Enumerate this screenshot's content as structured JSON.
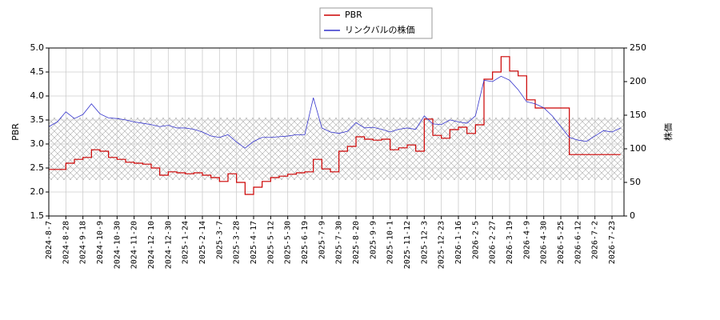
{
  "chart_data": {
    "type": "line",
    "categories": [
      "2024-8-7",
      null,
      "2024-8-28",
      null,
      "2024-9-18",
      null,
      "2024-10-9",
      null,
      "2024-10-30",
      null,
      "2024-11-20",
      null,
      "2024-12-10",
      null,
      "2024-12-30",
      null,
      "2025-1-24",
      null,
      "2025-2-14",
      null,
      "2025-3-7",
      null,
      "2025-3-28",
      null,
      "2025-4-17",
      null,
      "2025-5-12",
      null,
      "2025-5-30",
      null,
      "2025-6-19",
      null,
      "2025-7-9",
      null,
      "2025-7-30",
      null,
      "2025-8-20",
      null,
      "2025-9-9",
      null,
      "2025-10-1",
      null,
      "2025-11-12",
      null,
      "2025-12-3",
      null,
      "2025-12-23",
      null,
      "2026-1-16",
      null,
      "2026-2-5",
      null,
      "2026-2-27",
      null,
      "2026-3-19",
      null,
      "2026-4-9",
      null,
      "2026-4-30",
      null,
      "2026-5-25",
      null,
      "2026-6-12",
      null,
      "2026-7-2",
      null,
      "2026-7-23",
      null
    ],
    "series": [
      {
        "name": "PBR",
        "color": "#cc0000",
        "step": true,
        "values": [
          2.47,
          2.47,
          2.6,
          2.68,
          2.72,
          2.88,
          2.85,
          2.72,
          2.68,
          2.62,
          2.6,
          2.58,
          2.5,
          2.35,
          2.42,
          2.4,
          2.38,
          2.4,
          2.35,
          2.3,
          2.22,
          2.38,
          2.2,
          1.95,
          2.1,
          2.22,
          2.3,
          2.33,
          2.37,
          2.4,
          2.42,
          2.68,
          2.48,
          2.42,
          2.85,
          2.95,
          3.15,
          3.1,
          3.08,
          3.1,
          2.88,
          2.92,
          2.98,
          2.85,
          3.52,
          3.18,
          3.12,
          3.3,
          3.35,
          3.22,
          3.4,
          4.35,
          4.5,
          4.82,
          4.52,
          4.42,
          3.92,
          3.75,
          3.75,
          3.75,
          3.75,
          2.78,
          2.78,
          2.78,
          2.78,
          2.78,
          2.78,
          2.78
        ]
      },
      {
        "name": "リンクバルの株価",
        "color": "#3333cc",
        "axis": "y2",
        "values": [
          133,
          140,
          155,
          145,
          151,
          167,
          152,
          146,
          145,
          143,
          140,
          138,
          136,
          133,
          135,
          131,
          131,
          129,
          125,
          119,
          117,
          121,
          110,
          101,
          111,
          117,
          117,
          118,
          119,
          121,
          121,
          176,
          131,
          125,
          123,
          126,
          139,
          131,
          132,
          129,
          125,
          129,
          131,
          129,
          149,
          137,
          136,
          143,
          140,
          138,
          149,
          202,
          200,
          208,
          202,
          188,
          170,
          167,
          161,
          149,
          133,
          117,
          113,
          111,
          119,
          127,
          125,
          131
        ]
      }
    ],
    "band": [
      2.25,
      3.55
    ],
    "ylabel": "PBR",
    "y2label": "株価",
    "ylim": [
      1.5,
      5.0
    ],
    "yticks": [
      {
        "value": 1.5,
        "label": "1.5"
      },
      {
        "value": 2.0,
        "label": "2.0"
      },
      {
        "value": 2.5,
        "label": "2.5"
      },
      {
        "value": 3.0,
        "label": "3.0"
      },
      {
        "value": 3.5,
        "label": "3.5"
      },
      {
        "value": 4.0,
        "label": "4.0"
      },
      {
        "value": 4.5,
        "label": "4.5"
      },
      {
        "value": 5.0,
        "label": "5.0"
      }
    ],
    "y2lim": [
      0,
      250
    ],
    "y2ticks": [
      0,
      50,
      100,
      150,
      200,
      250
    ],
    "grid": true,
    "legend": "top"
  }
}
